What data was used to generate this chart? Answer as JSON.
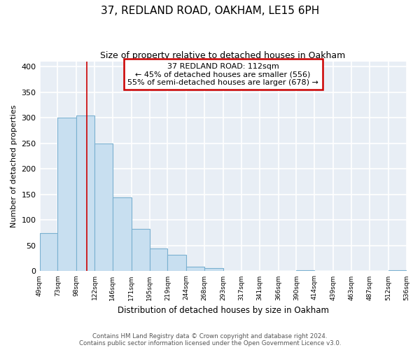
{
  "title": "37, REDLAND ROAD, OAKHAM, LE15 6PH",
  "subtitle": "Size of property relative to detached houses in Oakham",
  "xlabel": "Distribution of detached houses by size in Oakham",
  "ylabel": "Number of detached properties",
  "bin_edges": [
    49,
    73,
    98,
    122,
    146,
    171,
    195,
    219,
    244,
    268,
    293,
    317,
    341,
    366,
    390,
    414,
    439,
    463,
    487,
    512,
    536
  ],
  "bar_heights": [
    75,
    300,
    305,
    250,
    145,
    83,
    44,
    32,
    9,
    6,
    0,
    0,
    0,
    0,
    2,
    0,
    0,
    0,
    0,
    2
  ],
  "tick_labels": [
    "49sqm",
    "73sqm",
    "98sqm",
    "122sqm",
    "146sqm",
    "171sqm",
    "195sqm",
    "219sqm",
    "244sqm",
    "268sqm",
    "293sqm",
    "317sqm",
    "341sqm",
    "366sqm",
    "390sqm",
    "414sqm",
    "439sqm",
    "463sqm",
    "487sqm",
    "512sqm",
    "536sqm"
  ],
  "bar_color": "#c8dff0",
  "bar_edge_color": "#7ab0d0",
  "vline_x": 112,
  "vline_color": "#cc0000",
  "annotation_line1": "37 REDLAND ROAD: 112sqm",
  "annotation_line2": "← 45% of detached houses are smaller (556)",
  "annotation_line3": "55% of semi-detached houses are larger (678) →",
  "annotation_box_color": "white",
  "annotation_box_edge": "#cc0000",
  "ylim": [
    0,
    410
  ],
  "yticks": [
    0,
    50,
    100,
    150,
    200,
    250,
    300,
    350,
    400
  ],
  "background_color": "#e8eef5",
  "grid_color": "white",
  "footer_line1": "Contains HM Land Registry data © Crown copyright and database right 2024.",
  "footer_line2": "Contains public sector information licensed under the Open Government Licence v3.0."
}
